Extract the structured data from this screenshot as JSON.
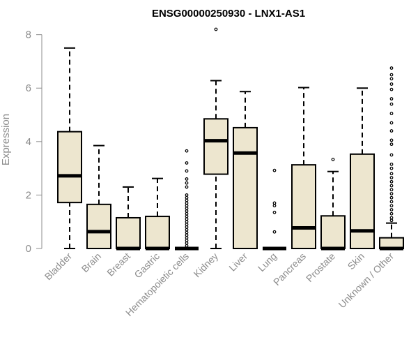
{
  "chart_data": {
    "type": "box",
    "title": "ENSG00000250930 - LNX1-AS1",
    "xlabel": "",
    "ylabel": "Expression",
    "ylim": [
      0,
      8.2
    ],
    "yticks": [
      0,
      2,
      4,
      6,
      8
    ],
    "grid": false,
    "colors": {
      "box_fill": "#ede6cf",
      "stroke": "#000000",
      "axis_text": "#8c8c8c"
    },
    "categories": [
      "Bladder",
      "Brain",
      "Breast",
      "Gastric",
      "Hematopoietic cells",
      "Kidney",
      "Liver",
      "Lung",
      "Pancreas",
      "Prostate",
      "Skin",
      "Unknown / Other"
    ],
    "boxes": [
      {
        "category": "Bladder",
        "whisker_low": 0,
        "q1": 1.72,
        "median": 2.72,
        "q3": 4.37,
        "whisker_high": 7.5,
        "outliers": []
      },
      {
        "category": "Brain",
        "whisker_low": 0,
        "q1": 0,
        "median": 0.63,
        "q3": 1.65,
        "whisker_high": 3.85,
        "outliers": []
      },
      {
        "category": "Breast",
        "whisker_low": 0,
        "q1": 0,
        "median": 0,
        "q3": 1.15,
        "whisker_high": 2.3,
        "outliers": []
      },
      {
        "category": "Gastric",
        "whisker_low": 0,
        "q1": 0,
        "median": 0,
        "q3": 1.2,
        "whisker_high": 2.62,
        "outliers": []
      },
      {
        "category": "Hematopoietic cells",
        "whisker_low": 0,
        "q1": 0,
        "median": 0,
        "q3": 0,
        "whisker_high": 0,
        "outliers": [
          0.1,
          0.2,
          0.3,
          0.4,
          0.5,
          0.6,
          0.7,
          0.8,
          0.9,
          1.0,
          1.1,
          1.2,
          1.3,
          1.4,
          1.5,
          1.6,
          1.7,
          1.8,
          1.9,
          2.0,
          2.3,
          2.45,
          2.6,
          2.9,
          3.2,
          3.65
        ]
      },
      {
        "category": "Kidney",
        "whisker_low": 0,
        "q1": 2.78,
        "median": 4.03,
        "q3": 4.85,
        "whisker_high": 6.28,
        "outliers": [
          8.2
        ]
      },
      {
        "category": "Liver",
        "whisker_low": 0,
        "q1": 0,
        "median": 3.57,
        "q3": 4.52,
        "whisker_high": 5.87,
        "outliers": []
      },
      {
        "category": "Lung",
        "whisker_low": 0,
        "q1": 0,
        "median": 0,
        "q3": 0,
        "whisker_high": 0,
        "outliers": [
          0.62,
          1.35,
          1.6,
          1.7,
          2.92
        ]
      },
      {
        "category": "Pancreas",
        "whisker_low": 0,
        "q1": 0,
        "median": 0.77,
        "q3": 3.13,
        "whisker_high": 6.02,
        "outliers": []
      },
      {
        "category": "Prostate",
        "whisker_low": 0,
        "q1": 0,
        "median": 0,
        "q3": 1.22,
        "whisker_high": 2.88,
        "outliers": [
          3.33
        ]
      },
      {
        "category": "Skin",
        "whisker_low": 0,
        "q1": 0,
        "median": 0.66,
        "q3": 3.53,
        "whisker_high": 6.0,
        "outliers": []
      },
      {
        "category": "Unknown / Other",
        "whisker_low": 0,
        "q1": 0,
        "median": 0,
        "q3": 0.4,
        "whisker_high": 0.95,
        "outliers": [
          1.05,
          1.15,
          1.3,
          1.45,
          1.6,
          1.75,
          1.9,
          2.05,
          2.2,
          2.35,
          2.5,
          2.65,
          2.8,
          3.0,
          3.15,
          3.5,
          3.9,
          4.05,
          4.4,
          4.7,
          5.05,
          5.4,
          5.6,
          5.95,
          6.15,
          6.35,
          6.5,
          6.75
        ]
      }
    ]
  }
}
